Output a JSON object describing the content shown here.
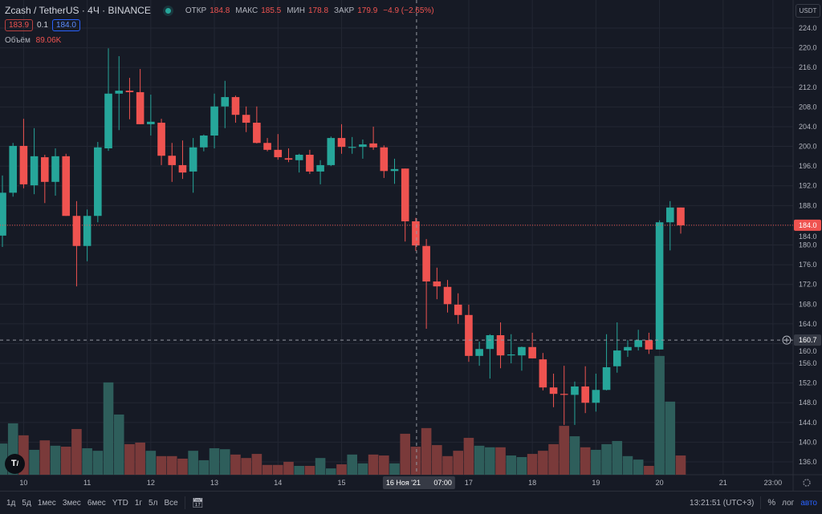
{
  "header": {
    "symbol": "Zcash / TetherUS",
    "interval": "4Ч",
    "exchange": "BINANCE",
    "ohlc": [
      {
        "label": "ОТКР",
        "value": "184.8"
      },
      {
        "label": "МАКС",
        "value": "185.5"
      },
      {
        "label": "МИН",
        "value": "178.8"
      },
      {
        "label": "ЗАКР",
        "value": "179.9"
      }
    ],
    "change": "−4.9 (−2.65%)",
    "bid": "183.9",
    "spread": "0.1",
    "ask": "184.0",
    "volume_label": "Объём",
    "volume_value": "89.06K"
  },
  "currency": "USDT",
  "colors": {
    "up": "#26a69a",
    "down": "#ef5350",
    "up_vol": "#2e5e5b",
    "down_vol": "#7a3a3a",
    "bg": "#161a25",
    "grid": "#232733",
    "accent": "#2962ff"
  },
  "chart_data": {
    "type": "candlestick",
    "ylim": [
      134,
      226
    ],
    "price_ticks": [
      "224.0",
      "220.0",
      "216.0",
      "212.0",
      "208.0",
      "204.0",
      "200.0",
      "196.0",
      "192.0",
      "188.0",
      "184.0",
      "180.0",
      "176.0",
      "172.0",
      "168.0",
      "164.0",
      "160.0",
      "156.0",
      "152.0",
      "148.0",
      "144.0",
      "140.0",
      "136.0"
    ],
    "time_ticks": [
      {
        "label": "10",
        "bar": 2
      },
      {
        "label": "11",
        "bar": 8
      },
      {
        "label": "12",
        "bar": 14
      },
      {
        "label": "13",
        "bar": 20
      },
      {
        "label": "14",
        "bar": 26
      },
      {
        "label": "15",
        "bar": 32
      },
      {
        "label": "17",
        "bar": 44
      },
      {
        "label": "18",
        "bar": 50
      },
      {
        "label": "19",
        "bar": 56
      },
      {
        "label": "20",
        "bar": 62
      },
      {
        "label": "21",
        "bar": 68
      },
      {
        "label": "23:00",
        "bar": 72.7
      }
    ],
    "last_price": "184.0",
    "last_price_value": 184.0,
    "crosshair": {
      "price_label": "160.7",
      "price": 160.7,
      "time_label": "16 Ноя '21",
      "time_sub": "07:00",
      "bar": 39
    },
    "candles": [
      [
        181.9,
        194.1,
        179.6,
        190.6
      ],
      [
        190.6,
        200.7,
        189.8,
        200.1
      ],
      [
        200.1,
        205.6,
        191.5,
        192.3
      ],
      [
        192.1,
        203.7,
        190.3,
        198.0
      ],
      [
        197.8,
        198.3,
        188.5,
        192.8
      ],
      [
        192.8,
        199.6,
        190.0,
        198.0
      ],
      [
        198.0,
        198.5,
        185.9,
        185.9
      ],
      [
        185.9,
        188.9,
        171.6,
        179.8
      ],
      [
        179.8,
        187.2,
        176.7,
        185.9
      ],
      [
        185.9,
        200.9,
        184.6,
        199.8
      ],
      [
        199.6,
        219.9,
        199.1,
        210.7
      ],
      [
        210.7,
        218.3,
        203.3,
        211.3
      ],
      [
        211.3,
        213.9,
        205.5,
        211.0
      ],
      [
        211.0,
        215.7,
        204.5,
        204.5
      ],
      [
        204.5,
        210.5,
        202.2,
        205.0
      ],
      [
        204.8,
        205.6,
        196.2,
        198.1
      ],
      [
        198.1,
        200.7,
        192.8,
        196.2
      ],
      [
        196.2,
        201.2,
        193.4,
        194.7
      ],
      [
        194.9,
        201.7,
        190.6,
        199.8
      ],
      [
        199.8,
        202.4,
        199.0,
        202.2
      ],
      [
        202.2,
        210.7,
        199.6,
        208.1
      ],
      [
        208.1,
        213.3,
        203.7,
        210.0
      ],
      [
        210.0,
        210.3,
        204.8,
        206.4
      ],
      [
        206.4,
        208.1,
        202.9,
        204.8
      ],
      [
        204.8,
        208.1,
        200.6,
        200.7
      ],
      [
        200.7,
        201.7,
        199.0,
        199.3
      ],
      [
        199.3,
        202.5,
        197.3,
        197.8
      ],
      [
        197.6,
        199.6,
        196.8,
        197.3
      ],
      [
        197.2,
        198.5,
        194.7,
        198.3
      ],
      [
        198.3,
        199.3,
        194.4,
        194.9
      ],
      [
        194.9,
        197.2,
        192.3,
        196.2
      ],
      [
        196.2,
        202.0,
        196.0,
        201.7
      ],
      [
        201.7,
        204.5,
        198.5,
        199.9
      ],
      [
        199.8,
        201.9,
        198.5,
        199.9
      ],
      [
        199.9,
        201.4,
        197.5,
        200.4
      ],
      [
        200.6,
        204.0,
        199.3,
        199.8
      ],
      [
        199.8,
        200.2,
        193.6,
        195.0
      ],
      [
        195.0,
        197.5,
        192.4,
        195.4
      ],
      [
        195.5,
        195.5,
        180.7,
        184.8
      ],
      [
        184.8,
        185.5,
        178.8,
        179.9
      ],
      [
        179.8,
        181.2,
        163.0,
        172.6
      ],
      [
        172.6,
        175.4,
        169.0,
        171.6
      ],
      [
        171.5,
        172.9,
        166.3,
        168.0
      ],
      [
        167.9,
        170.2,
        164.0,
        165.8
      ],
      [
        165.8,
        167.9,
        156.3,
        157.5
      ],
      [
        157.5,
        160.4,
        155.5,
        158.9
      ],
      [
        158.9,
        161.9,
        152.9,
        161.7
      ],
      [
        161.7,
        164.3,
        155.0,
        157.6
      ],
      [
        157.6,
        161.9,
        156.0,
        157.8
      ],
      [
        157.6,
        159.4,
        154.5,
        159.3
      ],
      [
        159.3,
        162.2,
        157.0,
        157.0
      ],
      [
        156.8,
        158.1,
        150.5,
        151.1
      ],
      [
        151.1,
        153.9,
        147.1,
        149.8
      ],
      [
        149.8,
        155.5,
        143.5,
        149.6
      ],
      [
        149.6,
        152.3,
        143.5,
        151.3
      ],
      [
        151.3,
        155.4,
        145.9,
        148.0
      ],
      [
        148.0,
        153.9,
        146.2,
        150.6
      ],
      [
        150.6,
        161.9,
        150.5,
        155.2
      ],
      [
        155.4,
        164.3,
        154.1,
        158.6
      ],
      [
        158.6,
        160.7,
        157.3,
        159.3
      ],
      [
        159.3,
        162.8,
        158.6,
        160.7
      ],
      [
        160.7,
        162.2,
        157.9,
        158.8
      ],
      [
        158.8,
        185.0,
        158.8,
        184.6
      ],
      [
        184.6,
        188.9,
        178.9,
        187.6
      ],
      [
        187.6,
        187.6,
        182.3,
        184.0
      ]
    ],
    "volume_unit": "K",
    "volumes": [
      99,
      163,
      125,
      79,
      109,
      92,
      89,
      145,
      84,
      76,
      293,
      191,
      97,
      102,
      76,
      59,
      59,
      51,
      76,
      46,
      84,
      81,
      64,
      53,
      66,
      31,
      31,
      41,
      28,
      28,
      53,
      20,
      33,
      64,
      36,
      64,
      61,
      36,
      130,
      89,
      148,
      94,
      59,
      76,
      117,
      92,
      87,
      87,
      61,
      56,
      66,
      76,
      97,
      155,
      122,
      87,
      79,
      97,
      107,
      59,
      48,
      28,
      377,
      232,
      61
    ]
  },
  "toolbar": {
    "ranges": [
      "1д",
      "5д",
      "1мес",
      "3мес",
      "6мес",
      "YTD",
      "1г",
      "5л",
      "Все"
    ],
    "clock": "13:21:51 (UTC+3)",
    "percent": "%",
    "log": "лог",
    "auto": "авто"
  },
  "logo": "TV"
}
